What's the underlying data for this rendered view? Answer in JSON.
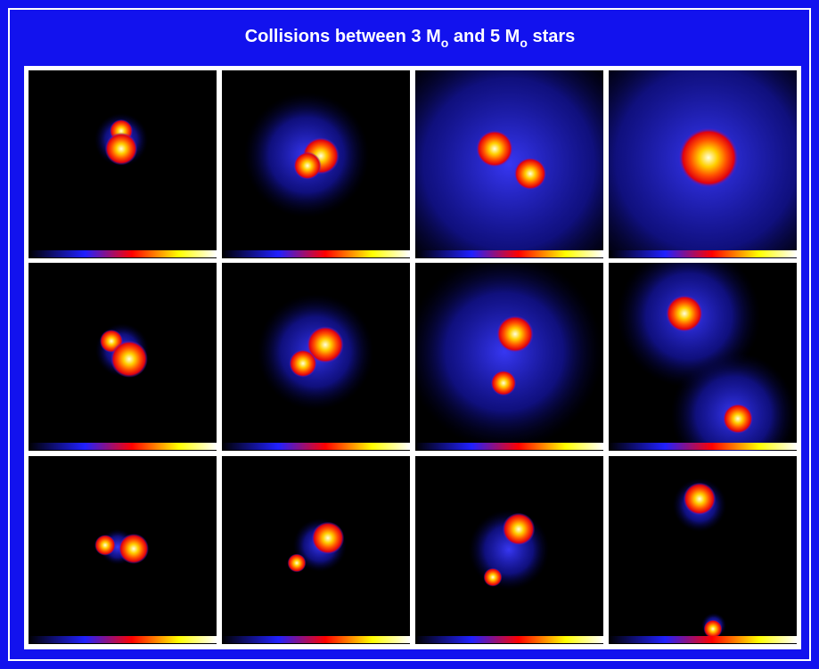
{
  "header": {
    "title": {
      "parts": [
        "Collisions between 3 M",
        "o",
        " and 5 M",
        "o",
        " stars"
      ]
    }
  }
}
